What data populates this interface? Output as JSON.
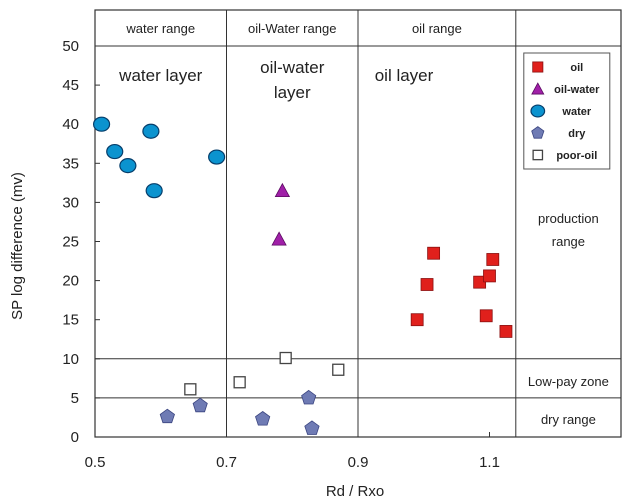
{
  "chart_data": {
    "type": "scatter",
    "xlabel": "Rd / Rxo",
    "ylabel": "SP log difference (mv)",
    "xlim": [
      0.5,
      1.3
    ],
    "ylim": [
      0,
      50
    ],
    "x_ticks": [
      "0.5",
      "0.7",
      "0.9",
      "1.1"
    ],
    "y_ticks": [
      "0",
      "5",
      "10",
      "15",
      "20",
      "25",
      "30",
      "35",
      "40",
      "45",
      "50"
    ],
    "legend_position": "top-right",
    "range_headers": [
      "water range",
      "oil-Water range",
      "oil range"
    ],
    "zone_labels": [
      "water layer",
      "oil-water layer",
      "oil layer"
    ],
    "side_labels": [
      "production range",
      "Low-pay zone",
      "dry range"
    ],
    "vertical_boundaries": [
      0.7,
      0.9,
      1.14
    ],
    "horizontal_boundaries": [
      5,
      10
    ],
    "series": [
      {
        "name": "oil",
        "marker": "square",
        "color": "#e0201c",
        "points": [
          [
            0.99,
            15.0
          ],
          [
            1.005,
            19.5
          ],
          [
            1.015,
            23.5
          ],
          [
            1.085,
            19.8
          ],
          [
            1.095,
            15.5
          ],
          [
            1.1,
            20.6
          ],
          [
            1.105,
            22.7
          ],
          [
            1.125,
            13.5
          ]
        ]
      },
      {
        "name": "oil-water",
        "marker": "triangle",
        "color": "#a020a8",
        "points": [
          [
            0.785,
            31.5
          ],
          [
            0.78,
            25.3
          ]
        ]
      },
      {
        "name": "water",
        "marker": "circle",
        "color": "#0b93cf",
        "points": [
          [
            0.51,
            40.0
          ],
          [
            0.53,
            36.5
          ],
          [
            0.55,
            34.7
          ],
          [
            0.585,
            39.1
          ],
          [
            0.59,
            31.5
          ],
          [
            0.685,
            35.8
          ]
        ]
      },
      {
        "name": "dry",
        "marker": "pentagon",
        "color": "#6f7bb4",
        "points": [
          [
            0.61,
            2.6
          ],
          [
            0.66,
            4.0
          ],
          [
            0.755,
            2.3
          ],
          [
            0.825,
            5.0
          ],
          [
            0.83,
            1.1
          ]
        ]
      },
      {
        "name": "poor-oil",
        "marker": "open-square",
        "color": "#444444",
        "points": [
          [
            0.645,
            6.1
          ],
          [
            0.72,
            7.0
          ],
          [
            0.79,
            10.1
          ],
          [
            0.87,
            8.6
          ]
        ]
      }
    ]
  }
}
